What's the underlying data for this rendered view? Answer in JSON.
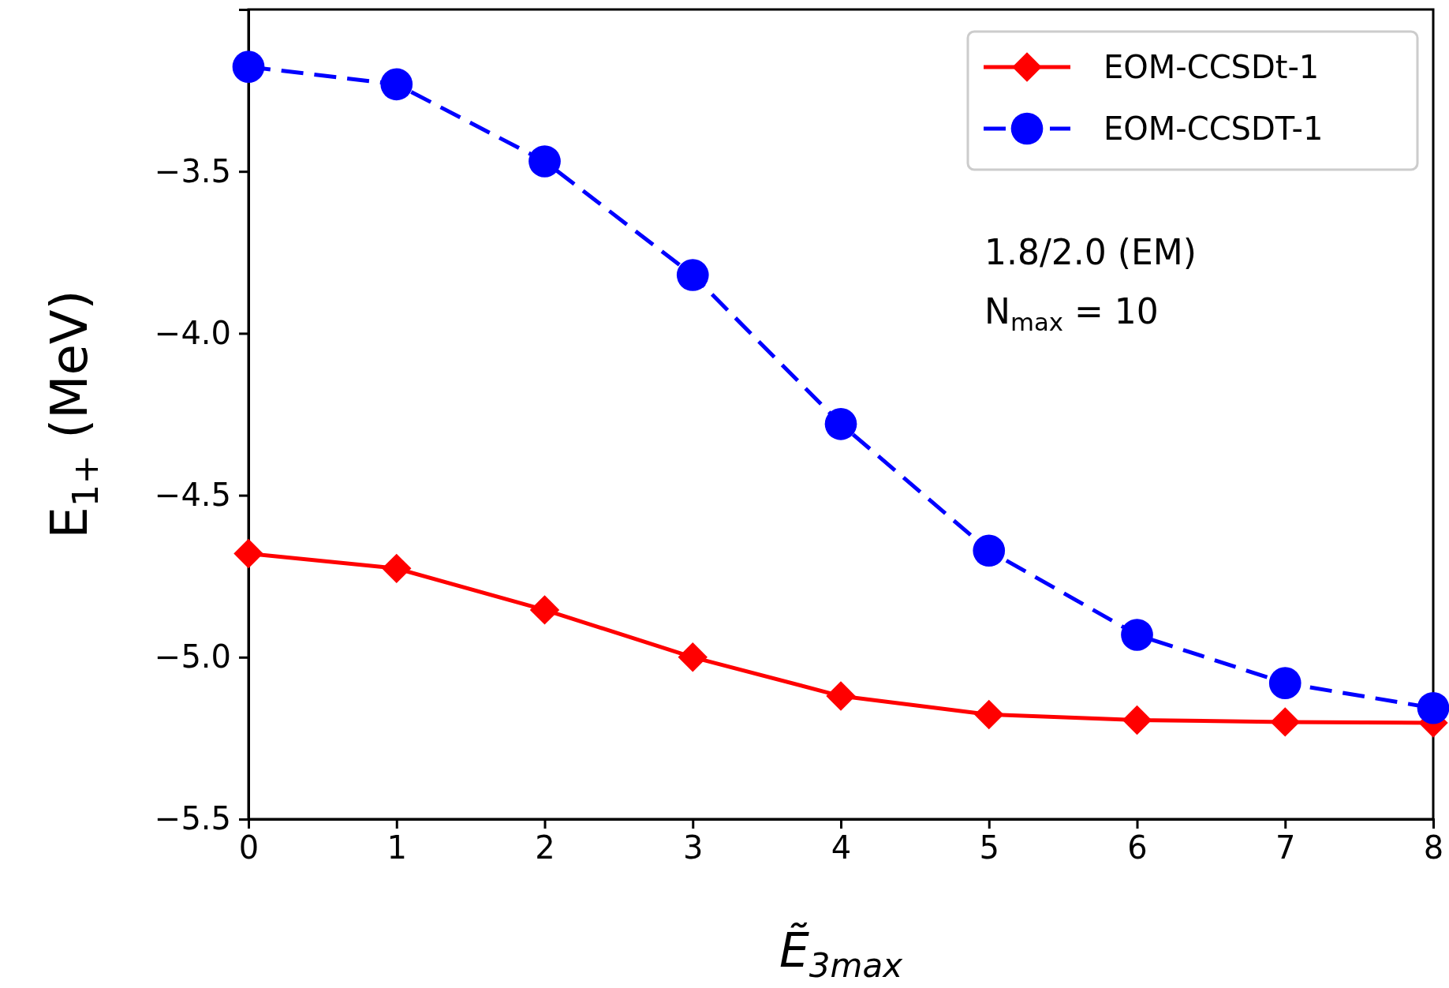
{
  "chart_data": {
    "type": "line",
    "xlabel": "Ẽ$_{3max}$",
    "ylabel": "E$_{1+}$ (MeV)",
    "x": [
      0,
      1,
      2,
      3,
      4,
      5,
      6,
      7,
      8
    ],
    "series": [
      {
        "name": "EOM-CCSDt-1",
        "color": "#ff0000",
        "marker": "diamond",
        "line_style": "solid",
        "values": [
          -4.68,
          -4.726,
          -4.854,
          -5.0,
          -5.12,
          -5.177,
          -5.194,
          -5.2,
          -5.203
        ]
      },
      {
        "name": "EOM-CCSDT-1",
        "color": "#0000ff",
        "marker": "circle",
        "line_style": "dashed",
        "values": [
          -3.177,
          -3.231,
          -3.469,
          -3.82,
          -4.28,
          -4.671,
          -4.931,
          -5.08,
          -5.157
        ]
      }
    ],
    "xlim": [
      0,
      8
    ],
    "xticks": [
      0,
      1,
      2,
      3,
      4,
      5,
      6,
      7,
      8
    ],
    "ylim": [
      -5.5,
      -3.0
    ],
    "yticks": [
      {
        "value": -5.5,
        "label": "−5.5"
      },
      {
        "value": -5.0,
        "label": "−5.0"
      },
      {
        "value": -4.5,
        "label": "−4.5"
      },
      {
        "value": -4.0,
        "label": "−4.0"
      },
      {
        "value": -3.5,
        "label": "−3.5"
      }
    ],
    "annotations": [
      "1.8/2.0 (EM)",
      "N$_{max}$ = 10"
    ],
    "legend": "top right",
    "grid": false
  }
}
